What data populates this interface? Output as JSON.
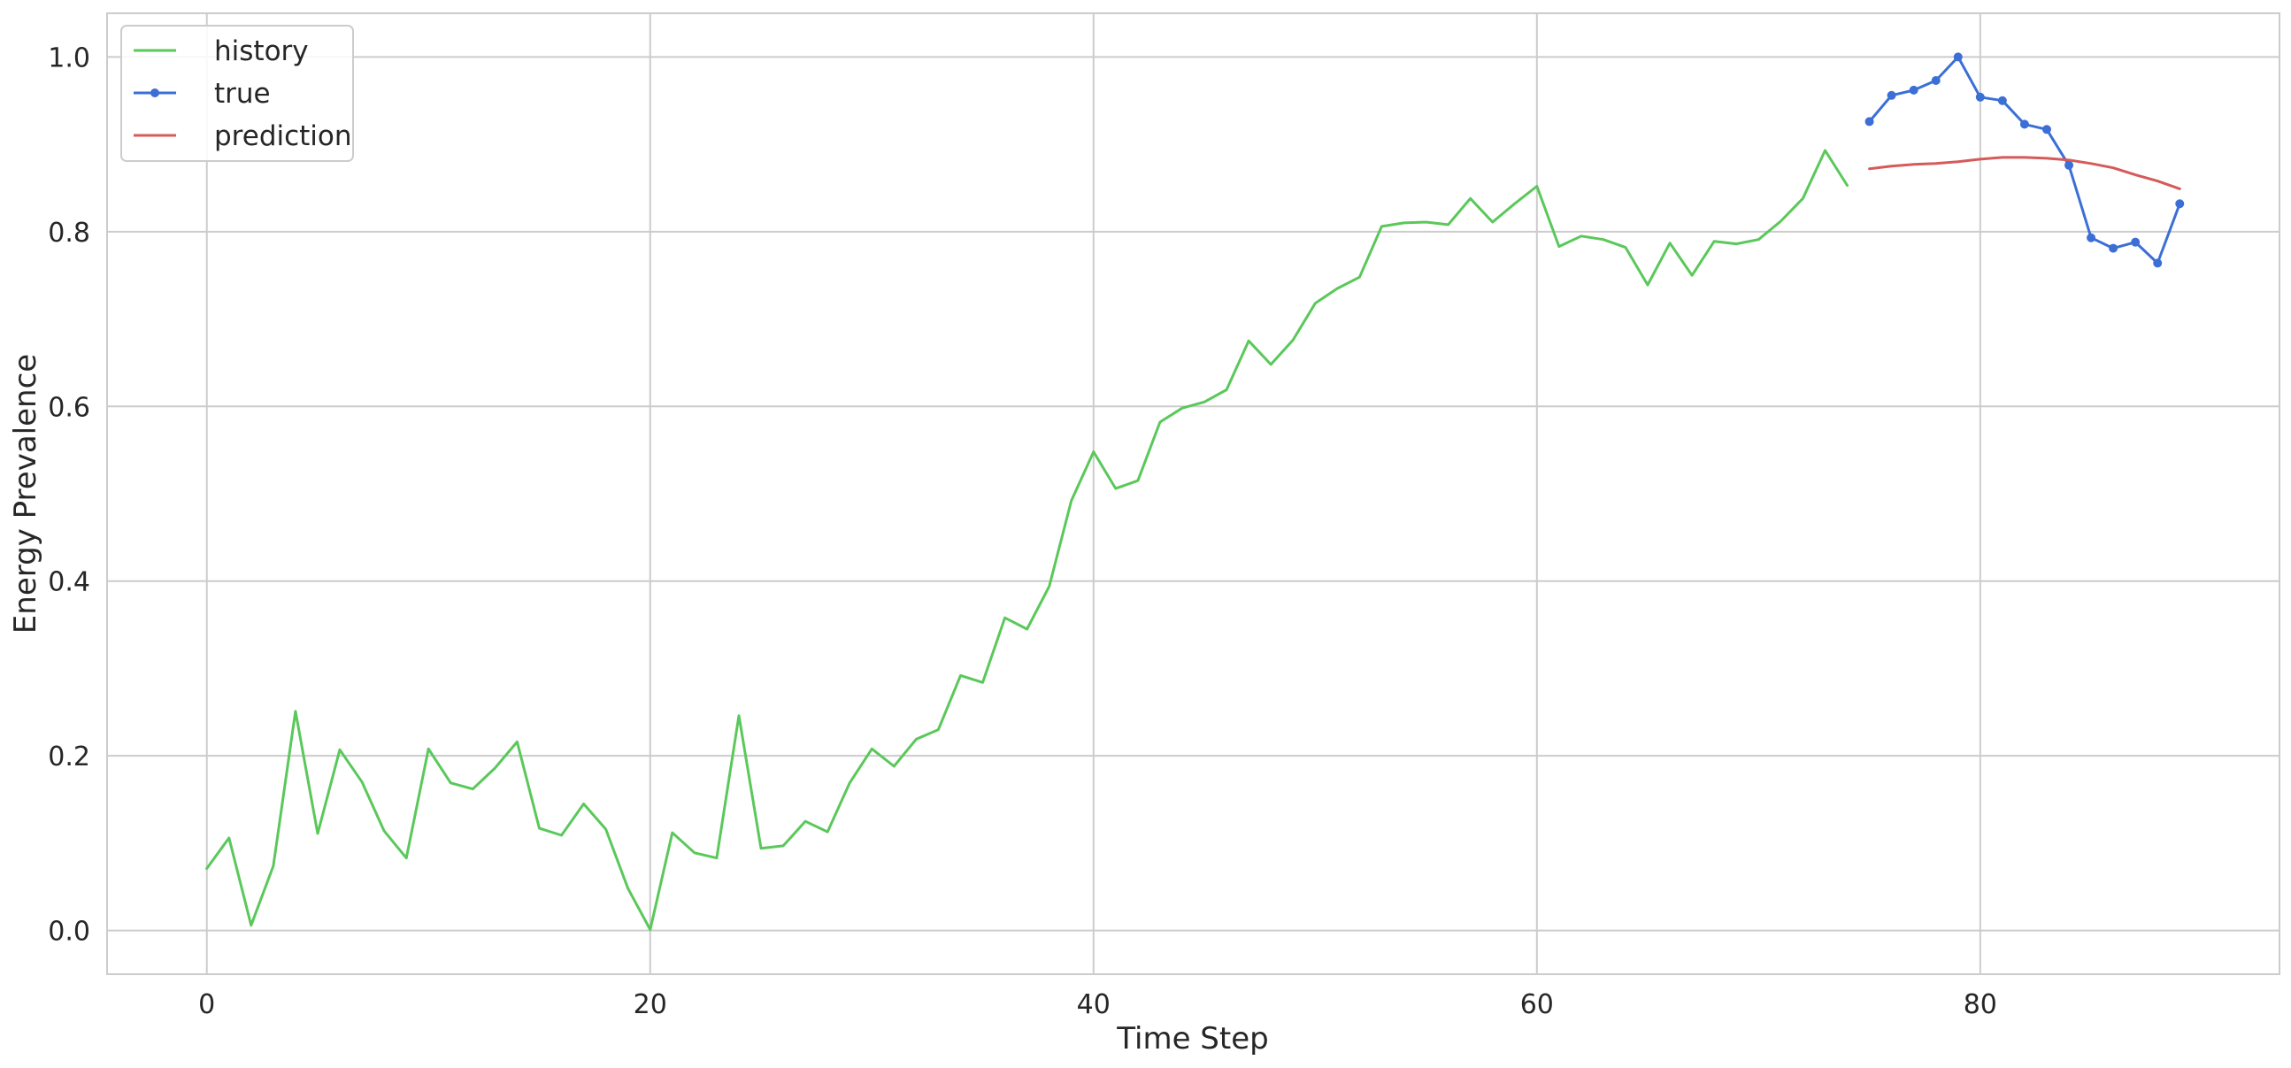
{
  "chart_data": {
    "type": "line",
    "xlabel": "Time Step",
    "ylabel": "Energy Prevalence",
    "xlim": [
      -4.5,
      93.5
    ],
    "ylim": [
      -0.05,
      1.05
    ],
    "xticks": [
      0,
      20,
      40,
      60,
      80
    ],
    "yticks": [
      0.0,
      0.2,
      0.4,
      0.6,
      0.8,
      1.0
    ],
    "xtick_labels": [
      "0",
      "20",
      "40",
      "60",
      "80"
    ],
    "ytick_labels": [
      "0.0",
      "0.2",
      "0.4",
      "0.6",
      "0.8",
      "1.0"
    ],
    "grid": true,
    "legend_position": "upper-left",
    "series": [
      {
        "name": "history",
        "color": "#5ac85a",
        "marker": "none",
        "x": [
          0,
          1,
          2,
          3,
          4,
          5,
          6,
          7,
          8,
          9,
          10,
          11,
          12,
          13,
          14,
          15,
          16,
          17,
          18,
          19,
          20,
          21,
          22,
          23,
          24,
          25,
          26,
          27,
          28,
          29,
          30,
          31,
          32,
          33,
          34,
          35,
          36,
          37,
          38,
          39,
          40,
          41,
          42,
          43,
          44,
          45,
          46,
          47,
          48,
          49,
          50,
          51,
          52,
          53,
          54,
          55,
          56,
          57,
          58,
          59,
          60,
          61,
          62,
          63,
          64,
          65,
          66,
          67,
          68,
          69,
          70,
          71,
          72,
          73,
          74
        ],
        "y": [
          0.071,
          0.106,
          0.006,
          0.074,
          0.251,
          0.111,
          0.207,
          0.17,
          0.114,
          0.083,
          0.208,
          0.169,
          0.162,
          0.186,
          0.216,
          0.117,
          0.109,
          0.145,
          0.116,
          0.048,
          0.001,
          0.112,
          0.089,
          0.083,
          0.246,
          0.094,
          0.097,
          0.125,
          0.113,
          0.169,
          0.208,
          0.188,
          0.219,
          0.23,
          0.292,
          0.284,
          0.358,
          0.345,
          0.394,
          0.492,
          0.548,
          0.506,
          0.515,
          0.582,
          0.598,
          0.605,
          0.619,
          0.675,
          0.648,
          0.676,
          0.718,
          0.735,
          0.748,
          0.806,
          0.81,
          0.811,
          0.808,
          0.838,
          0.811,
          0.832,
          0.852,
          0.783,
          0.795,
          0.791,
          0.782,
          0.739,
          0.787,
          0.75,
          0.789,
          0.786,
          0.791,
          0.812,
          0.838,
          0.893,
          0.853
        ]
      },
      {
        "name": "true",
        "color": "#3b6fd6",
        "marker": "dot",
        "x": [
          75,
          76,
          77,
          78,
          79,
          80,
          81,
          82,
          83,
          84,
          85,
          86,
          87,
          88,
          89
        ],
        "y": [
          0.926,
          0.956,
          0.962,
          0.973,
          1.0,
          0.954,
          0.95,
          0.923,
          0.917,
          0.876,
          0.793,
          0.781,
          0.788,
          0.764,
          0.832
        ]
      },
      {
        "name": "prediction",
        "color": "#d65a5a",
        "marker": "none",
        "x": [
          75,
          76,
          77,
          78,
          79,
          80,
          81,
          82,
          83,
          84,
          85,
          86,
          87,
          88,
          89
        ],
        "y": [
          0.872,
          0.875,
          0.877,
          0.878,
          0.88,
          0.883,
          0.885,
          0.885,
          0.884,
          0.882,
          0.878,
          0.873,
          0.865,
          0.858,
          0.849
        ]
      }
    ]
  }
}
